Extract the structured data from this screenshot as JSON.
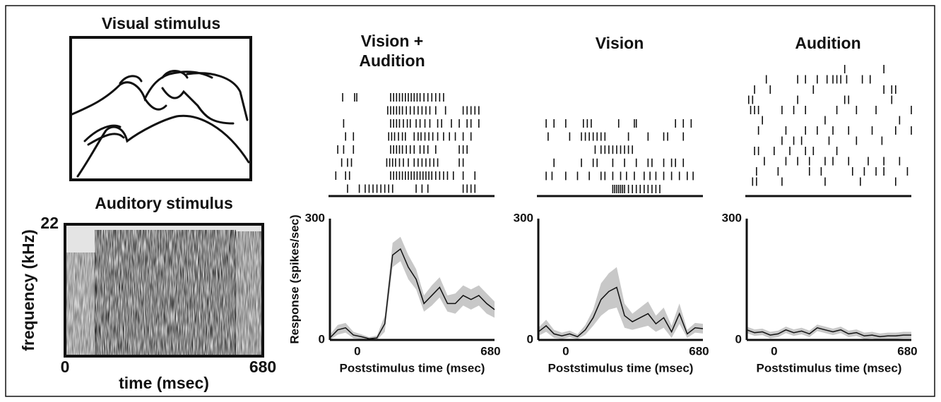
{
  "visual_stimulus": {
    "title": "Visual stimulus"
  },
  "chart_data": [
    {
      "type": "spectrogram",
      "title": "Auditory stimulus",
      "xlabel": "time (msec)",
      "ylabel": "frequency (kHz)",
      "xlim": [
        0,
        680
      ],
      "xticks": [
        0,
        680
      ],
      "ylim": [
        0,
        22
      ],
      "yticks": [
        22
      ]
    },
    {
      "type": "psth",
      "title": [
        "Vision +",
        "Audition"
      ],
      "xlabel": "Poststimulus time (msec)",
      "ylabel": "Response (spikes/sec)",
      "xlim": [
        -140,
        700
      ],
      "xticks": [
        0,
        680
      ],
      "ylim": [
        0,
        300
      ],
      "yticks": [
        0,
        300
      ],
      "color": "#111",
      "band_color": "#c8c8c8",
      "x": [
        -140,
        -100,
        -60,
        -20,
        20,
        60,
        100,
        140,
        180,
        220,
        260,
        300,
        340,
        380,
        420,
        460,
        500,
        540,
        580,
        620,
        660,
        700
      ],
      "values": [
        5,
        25,
        30,
        12,
        8,
        3,
        5,
        40,
        210,
        225,
        180,
        150,
        90,
        110,
        130,
        90,
        90,
        110,
        100,
        110,
        90,
        75
      ],
      "error": [
        8,
        12,
        12,
        8,
        6,
        4,
        6,
        20,
        30,
        30,
        30,
        25,
        20,
        25,
        25,
        20,
        25,
        25,
        25,
        25,
        25,
        20
      ],
      "raster": [
        [
          -75,
          -14,
          -3,
          170,
          185,
          200,
          215,
          230,
          245,
          260,
          275,
          290,
          305,
          320,
          340,
          360,
          380,
          400,
          420,
          440
        ],
        [
          155,
          170,
          185,
          200,
          215,
          230,
          250,
          270,
          290,
          310,
          330,
          350,
          370,
          400,
          450,
          540,
          560,
          580,
          600,
          620
        ],
        [
          -70,
          170,
          185,
          200,
          215,
          235,
          255,
          270,
          300,
          320,
          345,
          370,
          410,
          430,
          480,
          520,
          560,
          580,
          620
        ],
        [
          -60,
          -20,
          160,
          175,
          190,
          210,
          230,
          245,
          290,
          310,
          325,
          345,
          365,
          385,
          410,
          440,
          470,
          500,
          540,
          580
        ],
        [
          -100,
          -70,
          -20,
          170,
          185,
          200,
          215,
          230,
          250,
          270,
          290,
          320,
          340,
          360,
          400,
          520,
          540,
          560
        ],
        [
          -80,
          -50,
          -30,
          150,
          165,
          180,
          195,
          215,
          235,
          260,
          290,
          310,
          330,
          350,
          370,
          390,
          410,
          520,
          540
        ],
        [
          -110,
          -60,
          -40,
          170,
          185,
          200,
          215,
          230,
          245,
          260,
          275,
          290,
          305,
          320,
          335,
          350,
          365,
          380,
          400,
          420,
          440,
          460,
          490,
          540,
          600
        ],
        [
          -50,
          10,
          40,
          60,
          80,
          100,
          120,
          140,
          160,
          180,
          300,
          330,
          360,
          540,
          560,
          580,
          600
        ]
      ]
    },
    {
      "type": "psth",
      "title": "Vision",
      "xlabel": "Poststimulus time (msec)",
      "xlim": [
        -140,
        700
      ],
      "xticks": [
        0,
        680
      ],
      "ylim": [
        0,
        300
      ],
      "yticks": [
        0,
        300
      ],
      "color": "#111",
      "band_color": "#c8c8c8",
      "x": [
        -140,
        -100,
        -60,
        -20,
        20,
        60,
        100,
        140,
        180,
        220,
        260,
        300,
        340,
        380,
        420,
        460,
        500,
        540,
        580,
        620,
        660,
        700
      ],
      "values": [
        20,
        35,
        15,
        10,
        15,
        8,
        25,
        55,
        100,
        120,
        130,
        60,
        45,
        55,
        65,
        40,
        55,
        20,
        65,
        15,
        30,
        28
      ],
      "error": [
        10,
        15,
        10,
        8,
        8,
        6,
        12,
        20,
        40,
        45,
        50,
        30,
        20,
        25,
        30,
        20,
        25,
        15,
        25,
        10,
        12,
        12
      ],
      "raster": [
        [
          -100,
          -60,
          0,
          90,
          110,
          130,
          270,
          350,
          360,
          560,
          600,
          640
        ],
        [
          -90,
          20,
          80,
          100,
          120,
          140,
          160,
          180,
          200,
          320,
          420,
          500,
          520,
          600
        ],
        [
          150,
          180,
          200,
          220,
          240,
          260,
          280,
          300,
          320,
          340
        ],
        [
          -60,
          80,
          140,
          160,
          240,
          300,
          360,
          420,
          440,
          500,
          540,
          560,
          600
        ],
        [
          -100,
          -70,
          0,
          60,
          120,
          180,
          200,
          240,
          280,
          310,
          350,
          400,
          430,
          460,
          500,
          540,
          580,
          620,
          650
        ],
        [
          240,
          250,
          260,
          270,
          280,
          290,
          300,
          320,
          340,
          360,
          380,
          400,
          420,
          440,
          460,
          480
        ]
      ]
    },
    {
      "type": "psth",
      "title": "Audition",
      "xlabel": "Poststimulus time (msec)",
      "xlim": [
        -140,
        700
      ],
      "xticks": [
        0,
        680
      ],
      "ylim": [
        0,
        300
      ],
      "yticks": [
        0,
        300
      ],
      "color": "#111",
      "band_color": "#c8c8c8",
      "x": [
        -140,
        -100,
        -60,
        -20,
        20,
        60,
        100,
        140,
        180,
        220,
        260,
        300,
        340,
        380,
        420,
        460,
        500,
        540,
        580,
        620,
        660,
        700
      ],
      "values": [
        25,
        18,
        20,
        12,
        15,
        25,
        18,
        22,
        15,
        30,
        25,
        20,
        25,
        15,
        18,
        10,
        12,
        8,
        10,
        10,
        12,
        12
      ],
      "error": [
        8,
        8,
        8,
        8,
        8,
        8,
        8,
        8,
        8,
        8,
        8,
        8,
        8,
        8,
        8,
        8,
        8,
        8,
        8,
        8,
        8,
        8
      ],
      "raster": [
        [
          360,
          560
        ],
        [
          -40,
          120,
          160,
          220,
          270,
          300,
          320,
          340,
          370,
          450,
          490
        ],
        [
          -100,
          -20,
          200,
          560,
          600,
          620
        ],
        [
          -130,
          -110,
          120,
          360,
          380,
          600
        ],
        [
          -120,
          -100,
          -80,
          40,
          100,
          160,
          320,
          420,
          520,
          700
        ],
        [
          -60,
          260,
          640
        ],
        [
          -80,
          60,
          160,
          220,
          300,
          380,
          500,
          620,
          700
        ],
        [
          40,
          100,
          140,
          280,
          420,
          550
        ],
        [
          0,
          -100,
          -80,
          80,
          160,
          200,
          320
        ],
        [
          -50,
          60,
          120,
          180,
          260,
          300,
          380,
          480,
          560,
          640
        ],
        [
          -90,
          20,
          180,
          240,
          400,
          460,
          520,
          560,
          680
        ],
        [
          -110,
          -90,
          40,
          260,
          440,
          620
        ]
      ]
    }
  ]
}
